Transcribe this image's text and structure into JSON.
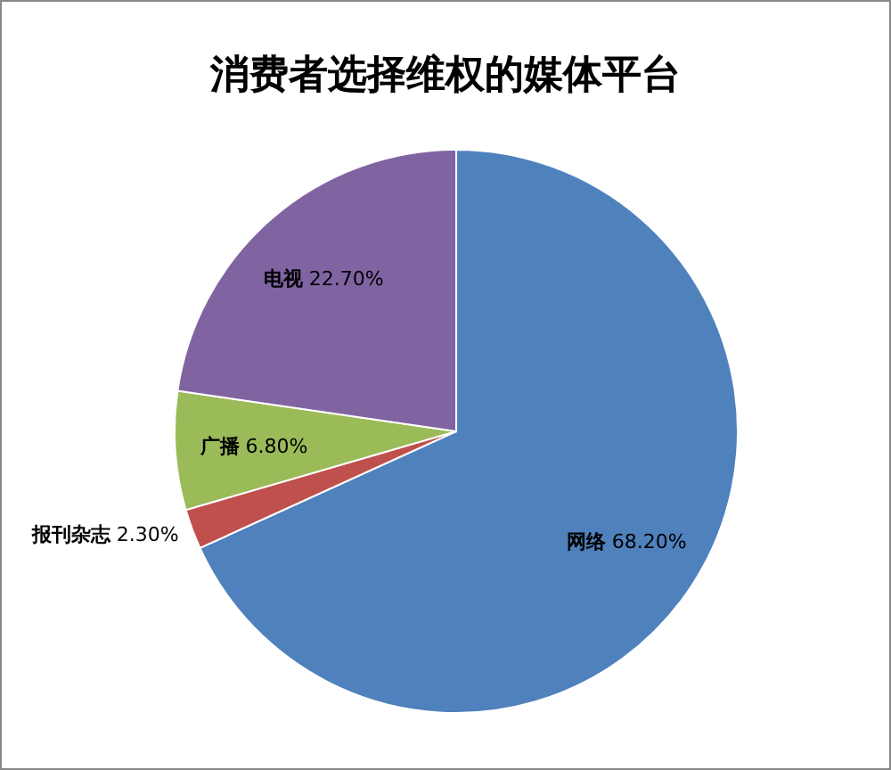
{
  "chart_data": {
    "type": "pie",
    "title": "消费者选择维权的媒体平台",
    "categories": [
      "网络",
      "报刊杂志",
      "广播",
      "电视"
    ],
    "values": [
      68.2,
      2.3,
      6.8,
      22.7
    ],
    "colors": [
      "#4f81bd",
      "#c0504d",
      "#9bbb59",
      "#8064a2"
    ],
    "value_labels": [
      "68.20%",
      "2.30%",
      "6.80%",
      "22.70%"
    ]
  }
}
